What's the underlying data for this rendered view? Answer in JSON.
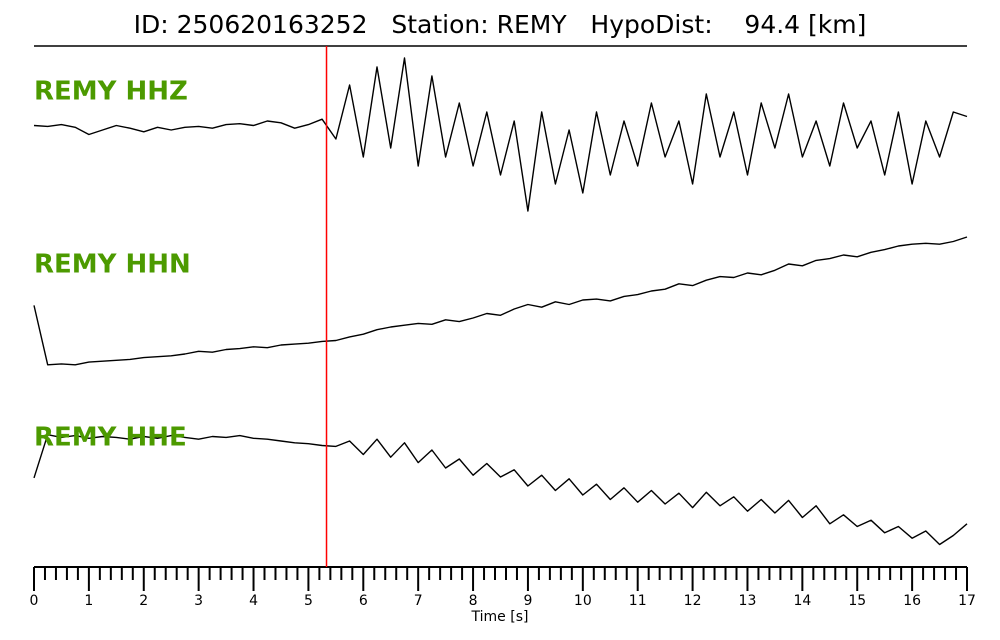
{
  "chart_data": {
    "type": "seismogram",
    "title": "ID: 250620163252   Station: REMY   HypoDist:    94.4 [km]",
    "xlabel": "Time [s]",
    "xlim": [
      0,
      17
    ],
    "xticks": [
      0,
      1,
      2,
      3,
      4,
      5,
      6,
      7,
      8,
      9,
      10,
      11,
      12,
      13,
      14,
      15,
      16,
      17
    ],
    "xminorticks": [
      0.2,
      0.4,
      0.6,
      0.8,
      1.2,
      1.4,
      1.6,
      1.8,
      2.2,
      2.4,
      2.6,
      2.8,
      3.2,
      3.4,
      3.6,
      3.8,
      4.2,
      4.4,
      4.6,
      4.8,
      5.2,
      5.4,
      5.6,
      5.8,
      6.2,
      6.4,
      6.6,
      6.8,
      7.2,
      7.4,
      7.6,
      7.8,
      8.2,
      8.4,
      8.6,
      8.8,
      9.2,
      9.4,
      9.6,
      9.8,
      10.2,
      10.4,
      10.6,
      10.8,
      11.2,
      11.4,
      11.6,
      11.8,
      12.2,
      12.4,
      12.6,
      12.8,
      13.2,
      13.4,
      13.6,
      13.8,
      14.2,
      14.4,
      14.6,
      14.8,
      15.2,
      15.4,
      15.6,
      15.8,
      16.2,
      16.4,
      16.6,
      16.8
    ],
    "ylim": [
      -1,
      1
    ],
    "pick": {
      "x": 5.33,
      "color": "#ff0000"
    },
    "label_color": "#4c9a00",
    "x": [
      0,
      0.25,
      0.5,
      0.75,
      1,
      1.25,
      1.5,
      1.75,
      2,
      2.25,
      2.5,
      2.75,
      3,
      3.25,
      3.5,
      3.75,
      4,
      4.25,
      4.5,
      4.75,
      5,
      5.25,
      5.5,
      5.75,
      6,
      6.25,
      6.5,
      6.75,
      7,
      7.25,
      7.5,
      7.75,
      8,
      8.25,
      8.5,
      8.75,
      9,
      9.25,
      9.5,
      9.75,
      10,
      10.25,
      10.5,
      10.75,
      11,
      11.25,
      11.5,
      11.75,
      12,
      12.25,
      12.5,
      12.75,
      13,
      13.25,
      13.5,
      13.75,
      14,
      14.25,
      14.5,
      14.75,
      15,
      15.25,
      15.5,
      15.75,
      16,
      16.25,
      16.5,
      16.75,
      17
    ],
    "series": [
      {
        "name": "REMY HHZ",
        "color": "#000000",
        "values": [
          0.05,
          0.04,
          0.06,
          0.03,
          -0.05,
          0.0,
          0.05,
          0.02,
          -0.02,
          0.03,
          0.0,
          0.03,
          0.04,
          0.02,
          0.06,
          0.07,
          0.05,
          0.1,
          0.08,
          0.02,
          0.06,
          0.12,
          -0.1,
          0.5,
          -0.3,
          0.7,
          -0.2,
          0.8,
          -0.4,
          0.6,
          -0.3,
          0.3,
          -0.4,
          0.2,
          -0.5,
          0.1,
          -0.9,
          0.2,
          -0.6,
          0.0,
          -0.7,
          0.2,
          -0.5,
          0.1,
          -0.4,
          0.3,
          -0.3,
          0.1,
          -0.6,
          0.4,
          -0.3,
          0.2,
          -0.5,
          0.3,
          -0.2,
          0.4,
          -0.3,
          0.1,
          -0.4,
          0.3,
          -0.2,
          0.1,
          -0.5,
          0.2,
          -0.6,
          0.1,
          -0.3,
          0.2,
          0.15
        ]
      },
      {
        "name": "REMY HHN",
        "color": "#000000",
        "values": [
          -0.06,
          -0.72,
          -0.71,
          -0.72,
          -0.69,
          -0.68,
          -0.67,
          -0.66,
          -0.64,
          -0.63,
          -0.62,
          -0.6,
          -0.57,
          -0.58,
          -0.55,
          -0.54,
          -0.52,
          -0.53,
          -0.5,
          -0.49,
          -0.48,
          -0.46,
          -0.45,
          -0.41,
          -0.38,
          -0.33,
          -0.3,
          -0.28,
          -0.26,
          -0.27,
          -0.22,
          -0.24,
          -0.2,
          -0.15,
          -0.17,
          -0.1,
          -0.05,
          -0.08,
          -0.02,
          -0.05,
          0.0,
          0.01,
          -0.01,
          0.04,
          0.06,
          0.1,
          0.12,
          0.18,
          0.16,
          0.22,
          0.26,
          0.25,
          0.3,
          0.28,
          0.33,
          0.4,
          0.38,
          0.44,
          0.46,
          0.5,
          0.48,
          0.53,
          0.56,
          0.6,
          0.62,
          0.63,
          0.62,
          0.65,
          0.7
        ]
      },
      {
        "name": "REMY HHE",
        "color": "#000000",
        "values": [
          0.19,
          0.67,
          0.64,
          0.66,
          0.63,
          0.65,
          0.64,
          0.62,
          0.65,
          0.63,
          0.66,
          0.64,
          0.62,
          0.65,
          0.64,
          0.66,
          0.63,
          0.62,
          0.6,
          0.58,
          0.57,
          0.55,
          0.54,
          0.6,
          0.45,
          0.62,
          0.42,
          0.58,
          0.36,
          0.5,
          0.3,
          0.4,
          0.22,
          0.35,
          0.2,
          0.28,
          0.1,
          0.22,
          0.05,
          0.18,
          0.0,
          0.12,
          -0.05,
          0.08,
          -0.08,
          0.05,
          -0.1,
          0.02,
          -0.14,
          0.03,
          -0.12,
          -0.02,
          -0.18,
          -0.05,
          -0.2,
          -0.06,
          -0.25,
          -0.12,
          -0.32,
          -0.22,
          -0.35,
          -0.28,
          -0.42,
          -0.35,
          -0.48,
          -0.4,
          -0.55,
          -0.45,
          -0.32
        ]
      }
    ]
  }
}
